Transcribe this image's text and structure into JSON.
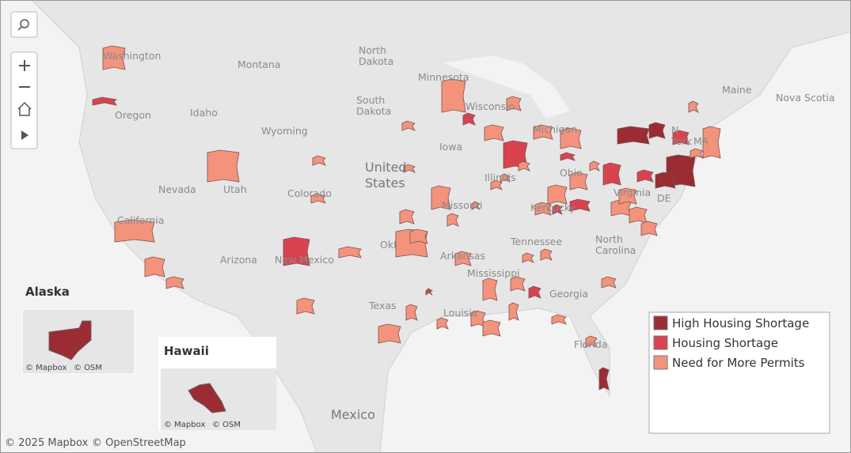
{
  "map": {
    "labels": [
      [
        "Washington"
      ],
      [
        "Montana"
      ],
      [
        "North",
        "Dakota"
      ],
      [
        "Minnesota"
      ],
      [
        "Wisconsin"
      ],
      [
        "Michigan"
      ],
      [
        "Maine"
      ],
      [
        "Nova Scotia"
      ],
      [
        "Oregon"
      ],
      [
        "Idaho"
      ],
      [
        "South",
        "Dakota"
      ],
      [
        "Wyoming"
      ],
      [
        "Iowa"
      ],
      [
        "Nevada"
      ],
      [
        "Utah"
      ],
      [
        "Colorado"
      ],
      [
        "United",
        "States"
      ],
      [
        "Illinois"
      ],
      [
        "Ohio"
      ],
      [
        "N",
        "York"
      ],
      [
        "MA"
      ],
      [
        "Missouri"
      ],
      [
        "Kentucky"
      ],
      [
        "Virginia"
      ],
      [
        "DE"
      ],
      [
        "California"
      ],
      [
        "Okl"
      ],
      [
        "Arkansas"
      ],
      [
        "Tennessee"
      ],
      [
        "North",
        "Carolina"
      ],
      [
        "Arizona"
      ],
      [
        "New Mexico"
      ],
      [
        "Mississippi"
      ],
      [
        "Georgia"
      ],
      [
        "Texas"
      ],
      [
        "Louisia"
      ],
      [
        "Florida"
      ],
      [
        "Mexico"
      ]
    ],
    "legend": {
      "items": [
        "High Housing Shortage",
        "Housing Shortage",
        "Need for More Permits"
      ],
      "colors": [
        "#9b2c33",
        "#d8434f",
        "#f4937c"
      ]
    },
    "insets": [
      {
        "title": "Alaska",
        "attribution": [
          "© Mapbox",
          "© OSM"
        ]
      },
      {
        "title": "Hawaii",
        "attribution": [
          "© Mapbox",
          "© OSM"
        ]
      }
    ],
    "attribution": [
      "© 2025 Mapbox",
      "© OpenStreetMap"
    ]
  }
}
